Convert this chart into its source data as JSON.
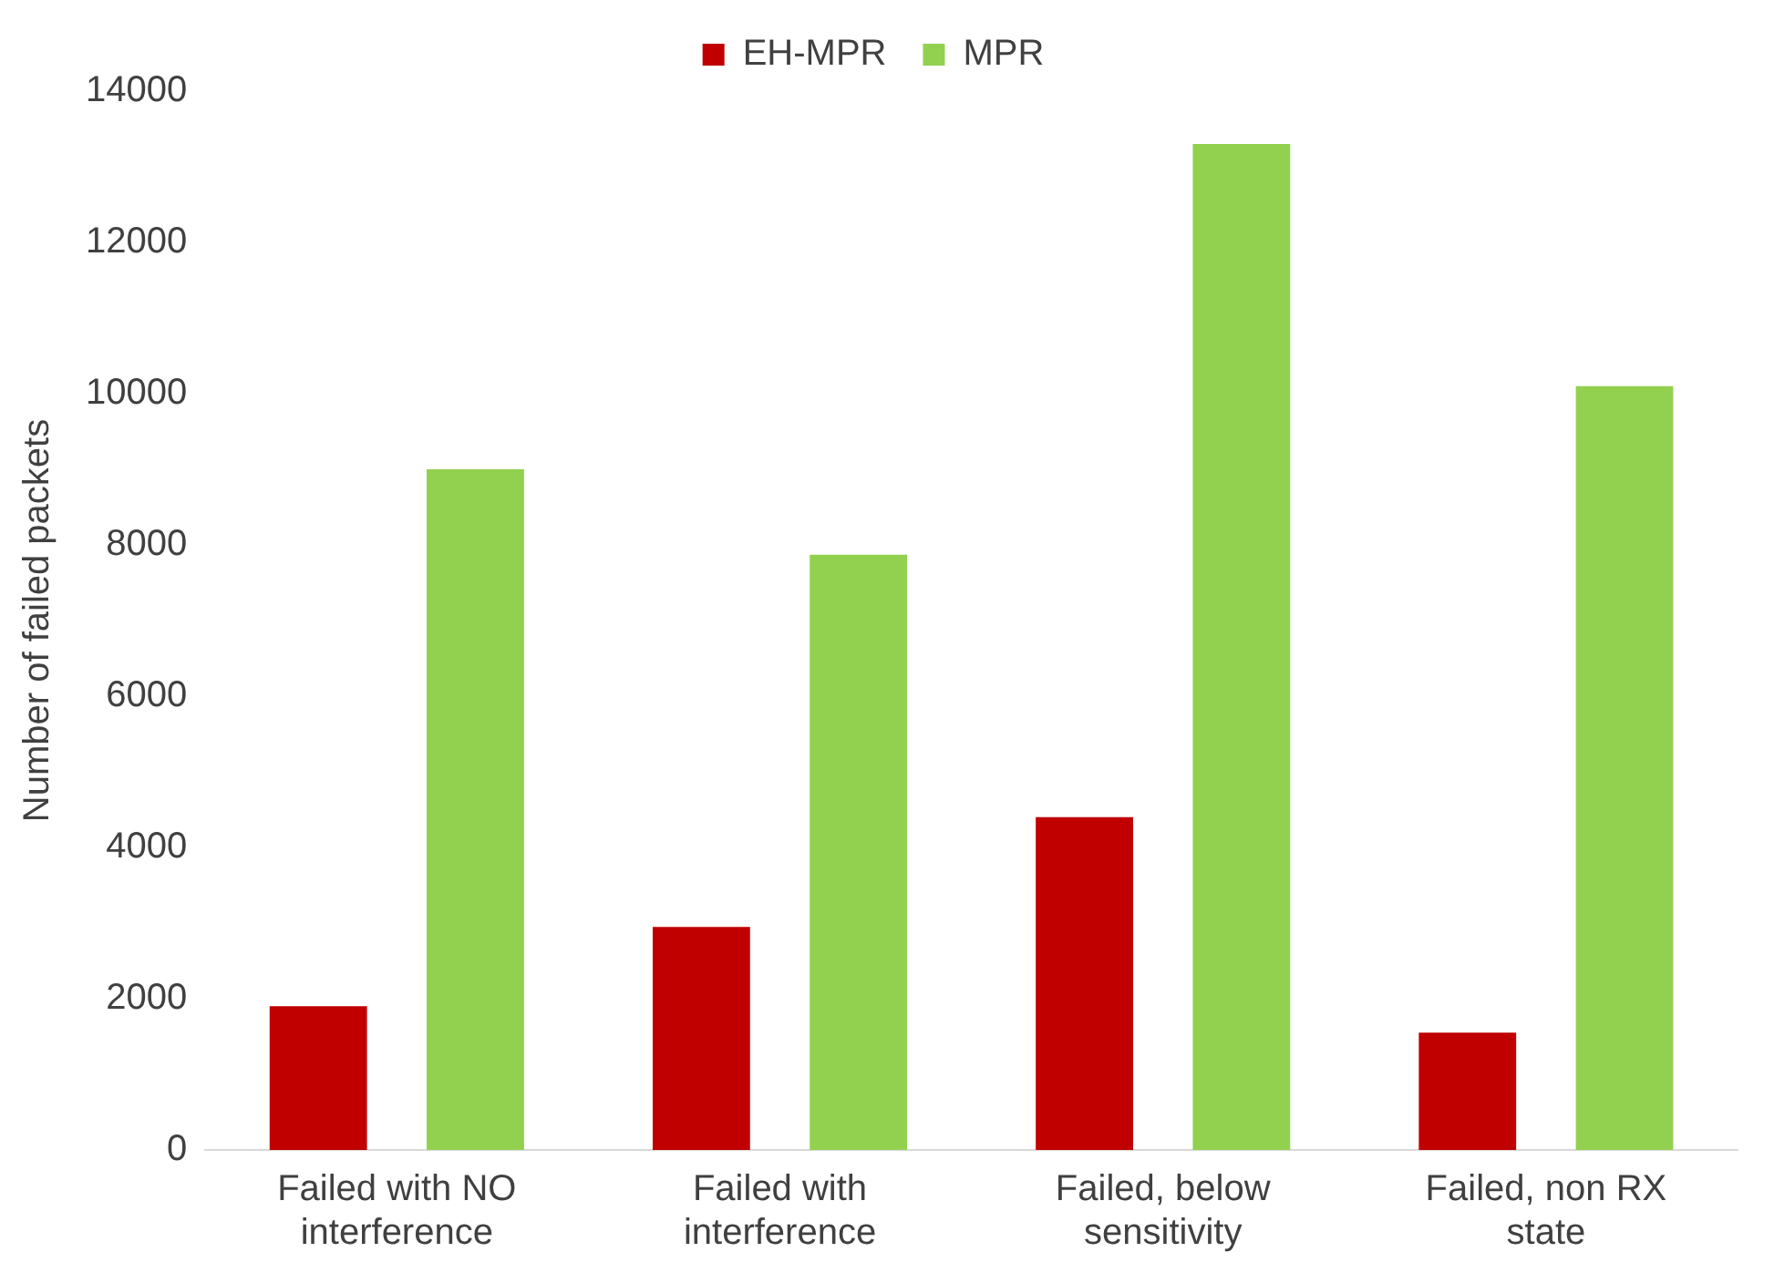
{
  "chart_data": {
    "type": "bar",
    "ylabel": "Number of failed packets",
    "categories": [
      "Failed with NO\ninterference",
      "Failed with\ninterference",
      "Failed, below\nsensitivity",
      "Failed, non RX\nstate"
    ],
    "series": [
      {
        "name": "EH-MPR",
        "color": "#c00000",
        "values": [
          1900,
          2950,
          4400,
          1550
        ]
      },
      {
        "name": "MPR",
        "color": "#92d050",
        "values": [
          9000,
          7870,
          13300,
          10100
        ]
      }
    ],
    "ylim": [
      0,
      14000
    ],
    "yticks": [
      0,
      2000,
      4000,
      6000,
      8000,
      10000,
      12000,
      14000
    ],
    "grid": false,
    "legend": "top"
  }
}
